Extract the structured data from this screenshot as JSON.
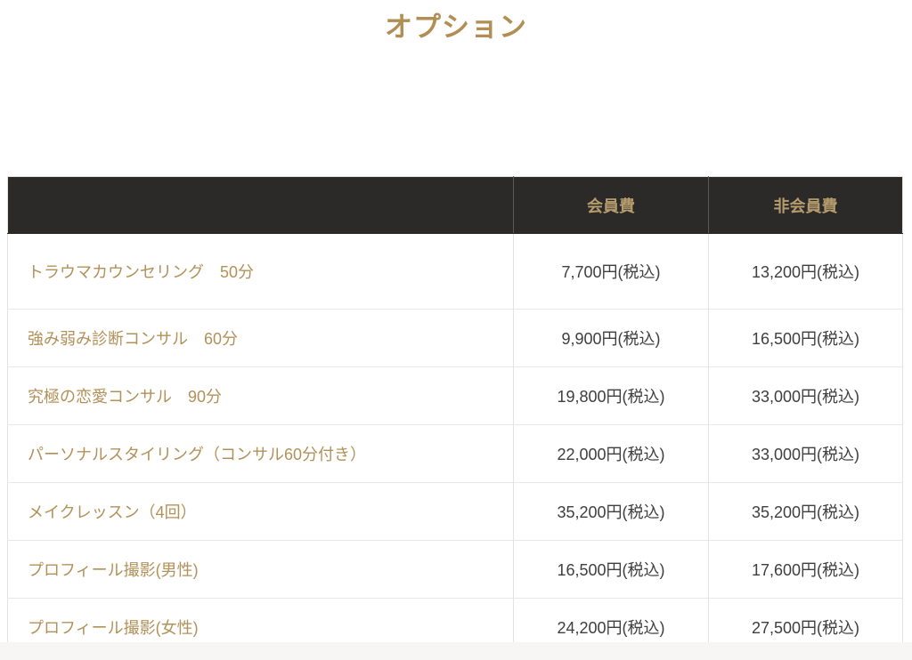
{
  "page": {
    "title": "オプション"
  },
  "table": {
    "headers": {
      "service": "",
      "member": "会員費",
      "nonmember": "非会員費"
    },
    "rows": [
      {
        "service": "トラウマカウンセリング　50分",
        "member": "7,700円(税込)",
        "nonmember": "13,200円(税込)"
      },
      {
        "service": "強み弱み診断コンサル　60分",
        "member": "9,900円(税込)",
        "nonmember": "16,500円(税込)"
      },
      {
        "service": "究極の恋愛コンサル　90分",
        "member": "19,800円(税込)",
        "nonmember": "33,000円(税込)"
      },
      {
        "service": "パーソナルスタイリング（コンサル60分付き）",
        "member": "22,000円(税込)",
        "nonmember": "33,000円(税込)"
      },
      {
        "service": "メイクレッスン（4回）",
        "member": "35,200円(税込)",
        "nonmember": "35,200円(税込)"
      },
      {
        "service": "プロフィール撮影(男性)",
        "member": "16,500円(税込)",
        "nonmember": "17,600円(税込)"
      },
      {
        "service": "プロフィール撮影(女性)",
        "member": "24,200円(税込)",
        "nonmember": "27,500円(税込)"
      }
    ]
  },
  "colors": {
    "accent_gold_title": "#b28e54",
    "accent_gold_text": "#b19159",
    "header_background": "#2b2a29",
    "header_text": "#b59c6d",
    "price_text": "#3e3e3e",
    "row_border": "#eae8e7"
  }
}
